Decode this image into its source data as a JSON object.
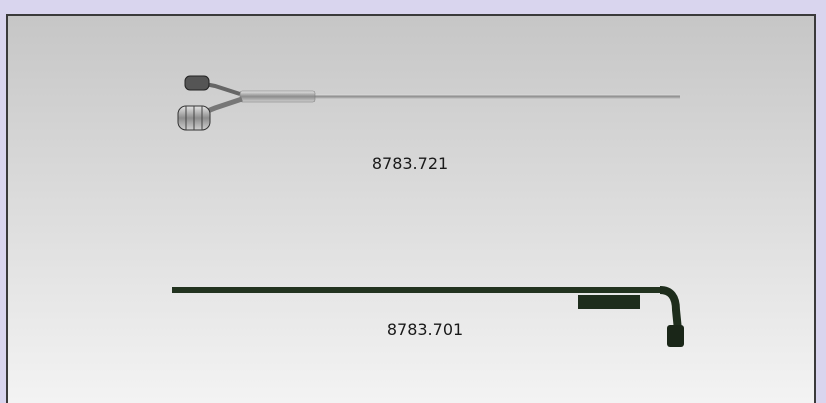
{
  "products": [
    {
      "label": "8783.721"
    },
    {
      "label": "8783.701"
    }
  ]
}
